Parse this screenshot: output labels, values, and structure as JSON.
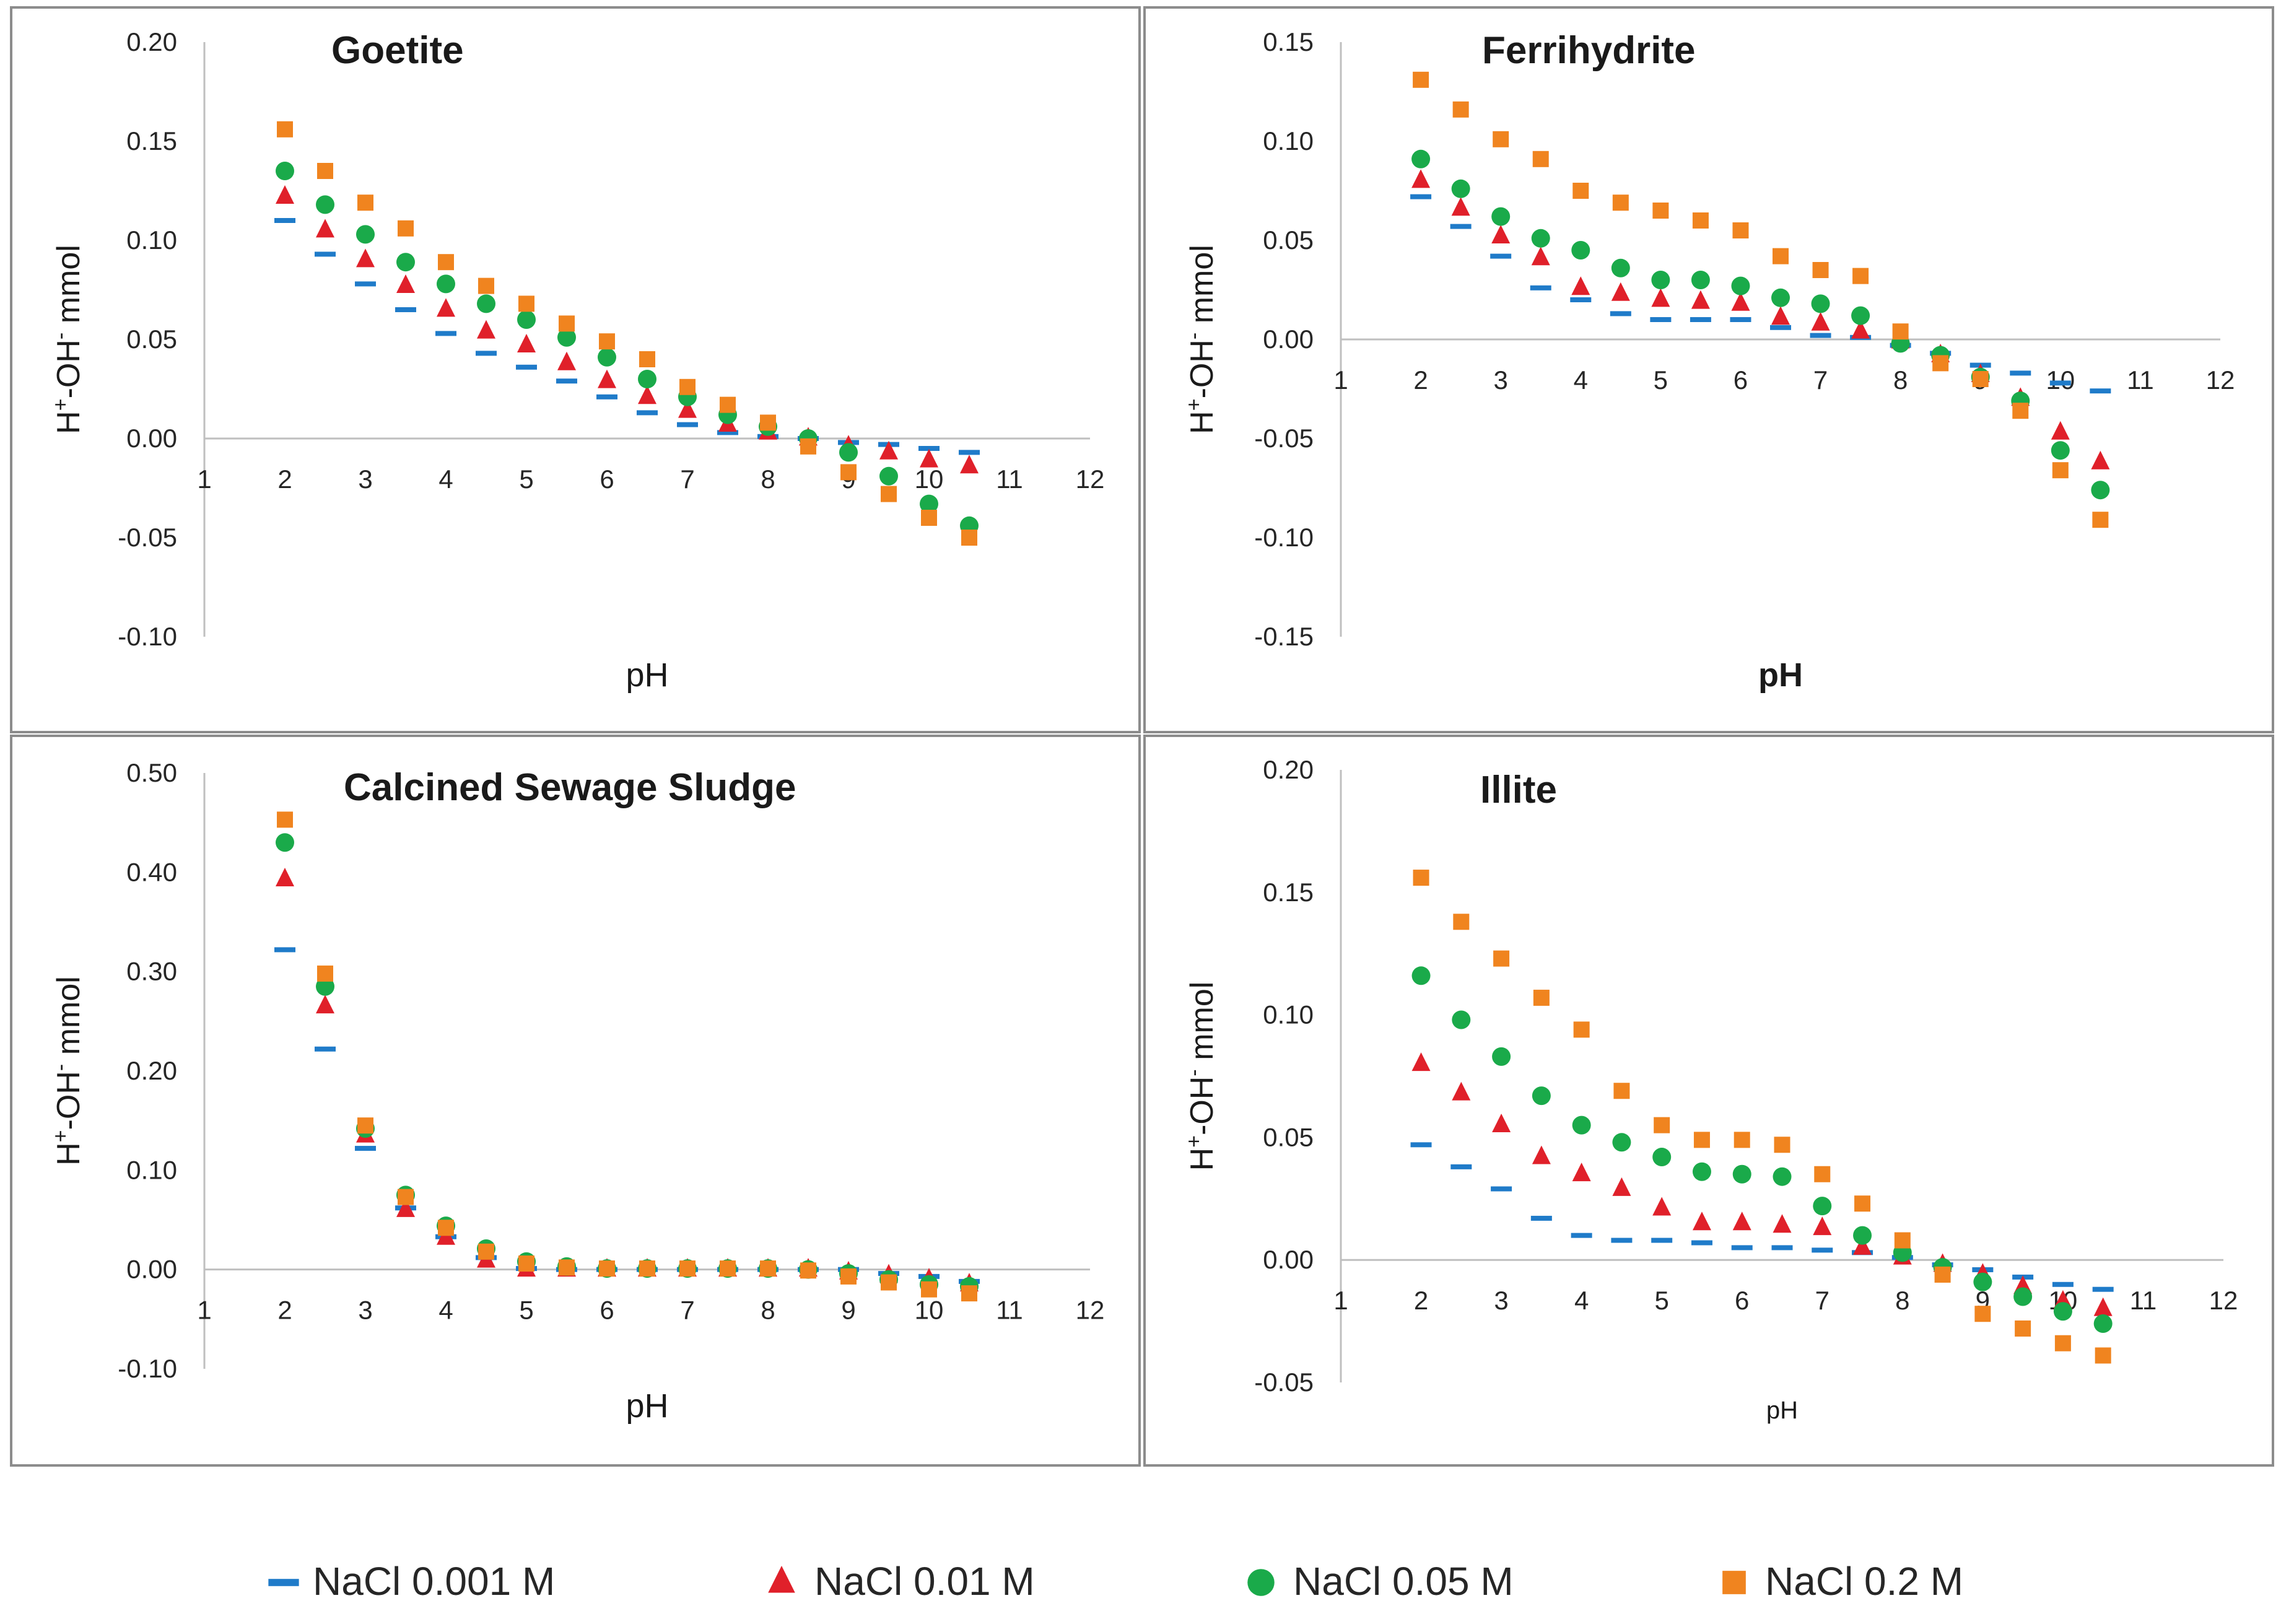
{
  "chart_data": [
    {
      "type": "scatter",
      "title": "Goetite",
      "xlabel": "pH",
      "xlabel_bold": false,
      "ylabel": "H+-OH- mmol",
      "xlim": [
        1,
        12
      ],
      "ylim": [
        -0.1,
        0.2
      ],
      "x_ticks": [
        1,
        2,
        3,
        4,
        5,
        6,
        7,
        8,
        9,
        10,
        11,
        12
      ],
      "y_ticks": [
        "0.20",
        "0.15",
        "0.10",
        "0.05",
        "0.00",
        "-0.05",
        "-0.10"
      ],
      "x": [
        2,
        2.5,
        3,
        3.5,
        4,
        4.5,
        5,
        5.5,
        6,
        6.5,
        7,
        7.5,
        8,
        8.5,
        9,
        9.5,
        10,
        10.5
      ],
      "series": [
        {
          "name": "NaCl 0.001 M",
          "values": [
            0.11,
            0.093,
            0.078,
            0.065,
            0.053,
            0.043,
            0.036,
            0.029,
            0.021,
            0.013,
            0.007,
            0.003,
            0.001,
            0.0,
            -0.002,
            -0.003,
            -0.005,
            -0.007
          ]
        },
        {
          "name": "NaCl 0.01 M",
          "values": [
            0.122,
            0.105,
            0.09,
            0.077,
            0.065,
            0.054,
            0.047,
            0.038,
            0.029,
            0.021,
            0.014,
            0.007,
            0.003,
            0.0,
            -0.004,
            -0.007,
            -0.011,
            -0.014
          ]
        },
        {
          "name": "NaCl 0.05 M",
          "values": [
            0.135,
            0.118,
            0.103,
            0.089,
            0.078,
            0.068,
            0.06,
            0.051,
            0.041,
            0.03,
            0.021,
            0.012,
            0.006,
            0.0,
            -0.007,
            -0.019,
            -0.033,
            -0.044
          ]
        },
        {
          "name": "NaCl 0.2 M",
          "values": [
            0.156,
            0.135,
            0.119,
            0.106,
            0.089,
            0.077,
            0.068,
            0.058,
            0.049,
            0.04,
            0.026,
            0.017,
            0.008,
            -0.004,
            -0.017,
            -0.028,
            -0.04,
            -0.05
          ]
        }
      ]
    },
    {
      "type": "scatter",
      "title": "Ferrihydrite",
      "xlabel": "pH",
      "xlabel_bold": true,
      "ylabel": "H+-OH- mmol",
      "xlim": [
        1,
        12
      ],
      "ylim": [
        -0.15,
        0.15
      ],
      "x_ticks": [
        1,
        2,
        3,
        4,
        5,
        6,
        7,
        8,
        9,
        10,
        11,
        12
      ],
      "y_ticks": [
        "0.15",
        "0.10",
        "0.05",
        "0.00",
        "-0.05",
        "-0.10",
        "-0.15"
      ],
      "x": [
        2,
        2.5,
        3,
        3.5,
        4,
        4.5,
        5,
        5.5,
        6,
        6.5,
        7,
        7.5,
        8,
        8.5,
        9,
        9.5,
        10,
        10.5
      ],
      "series": [
        {
          "name": "NaCl 0.001 M",
          "values": [
            0.072,
            0.057,
            0.042,
            0.026,
            0.02,
            0.013,
            0.01,
            0.01,
            0.01,
            0.006,
            0.002,
            0.001,
            -0.003,
            -0.007,
            -0.013,
            -0.017,
            -0.022,
            -0.026
          ]
        },
        {
          "name": "NaCl 0.01 M",
          "values": [
            0.08,
            0.066,
            0.052,
            0.041,
            0.026,
            0.023,
            0.02,
            0.019,
            0.018,
            0.011,
            0.008,
            0.004,
            -0.001,
            -0.008,
            -0.018,
            -0.03,
            -0.047,
            -0.062
          ]
        },
        {
          "name": "NaCl 0.05 M",
          "values": [
            0.091,
            0.076,
            0.062,
            0.051,
            0.045,
            0.036,
            0.03,
            0.03,
            0.027,
            0.021,
            0.018,
            0.012,
            -0.002,
            -0.008,
            -0.019,
            -0.031,
            -0.056,
            -0.076
          ]
        },
        {
          "name": "NaCl 0.2 M",
          "values": [
            0.131,
            0.116,
            0.101,
            0.091,
            0.075,
            0.069,
            0.065,
            0.06,
            0.055,
            0.042,
            0.035,
            0.032,
            0.004,
            -0.012,
            -0.02,
            -0.036,
            -0.066,
            -0.091
          ]
        }
      ]
    },
    {
      "type": "scatter",
      "title": "Calcined  Sewage Sludge",
      "xlabel": "pH",
      "xlabel_bold": false,
      "ylabel": "H+-OH- mmol",
      "xlim": [
        1,
        12
      ],
      "ylim": [
        -0.1,
        0.5
      ],
      "x_ticks": [
        1,
        2,
        3,
        4,
        5,
        6,
        7,
        8,
        9,
        10,
        11,
        12
      ],
      "y_ticks": [
        "0.50",
        "0.40",
        "0.30",
        "0.20",
        "0.10",
        "0.00",
        "-0.10"
      ],
      "x": [
        2,
        2.5,
        3,
        3.5,
        4,
        4.5,
        5,
        5.5,
        6,
        6.5,
        7,
        7.5,
        8,
        8.5,
        9,
        9.5,
        10,
        10.5
      ],
      "series": [
        {
          "name": "NaCl 0.001 M",
          "values": [
            0.322,
            0.222,
            0.122,
            0.062,
            0.033,
            0.012,
            0.001,
            0.0,
            0.0,
            0.0,
            0.0,
            0.0,
            0.0,
            0.0,
            0.0,
            -0.004,
            -0.007,
            -0.012
          ]
        },
        {
          "name": "NaCl 0.01 M",
          "values": [
            0.393,
            0.265,
            0.135,
            0.06,
            0.032,
            0.009,
            0.0,
            0.0,
            0.0,
            0.0,
            0.0,
            0.0,
            0.0,
            0.0,
            -0.003,
            -0.006,
            -0.01,
            -0.015
          ]
        },
        {
          "name": "NaCl 0.05 M",
          "values": [
            0.43,
            0.285,
            0.142,
            0.075,
            0.044,
            0.021,
            0.008,
            0.003,
            0.001,
            0.001,
            0.001,
            0.001,
            0.001,
            0.0,
            -0.004,
            -0.01,
            -0.015,
            -0.017
          ]
        },
        {
          "name": "NaCl 0.2 M",
          "values": [
            0.453,
            0.298,
            0.145,
            0.073,
            0.042,
            0.018,
            0.006,
            0.002,
            0.001,
            0.001,
            0.001,
            0.001,
            0.001,
            -0.001,
            -0.007,
            -0.013,
            -0.02,
            -0.024
          ]
        }
      ]
    },
    {
      "type": "scatter",
      "title": "Illite",
      "xlabel": "pH",
      "xlabel_bold": false,
      "xlabel_small": true,
      "ylabel": "H+-OH- mmol",
      "xlim": [
        1,
        12
      ],
      "ylim": [
        -0.05,
        0.2
      ],
      "x_ticks": [
        1,
        2,
        3,
        4,
        5,
        6,
        7,
        8,
        9,
        10,
        11,
        12
      ],
      "y_ticks": [
        "0.20",
        "0.15",
        "0.10",
        "0.05",
        "0.00",
        "-0.05"
      ],
      "x": [
        2,
        2.5,
        3,
        3.5,
        4,
        4.5,
        5,
        5.5,
        6,
        6.5,
        7,
        7.5,
        8,
        8.5,
        9,
        9.5,
        10,
        10.5
      ],
      "series": [
        {
          "name": "NaCl 0.001 M",
          "values": [
            0.047,
            0.038,
            0.029,
            0.017,
            0.01,
            0.008,
            0.008,
            0.007,
            0.005,
            0.005,
            0.004,
            0.003,
            0.001,
            -0.002,
            -0.004,
            -0.007,
            -0.01,
            -0.012
          ]
        },
        {
          "name": "NaCl 0.01 M",
          "values": [
            0.08,
            0.068,
            0.055,
            0.042,
            0.035,
            0.029,
            0.021,
            0.015,
            0.015,
            0.014,
            0.013,
            0.005,
            0.001,
            -0.002,
            -0.006,
            -0.011,
            -0.017,
            -0.02
          ]
        },
        {
          "name": "NaCl 0.05 M",
          "values": [
            0.116,
            0.098,
            0.083,
            0.067,
            0.055,
            0.048,
            0.042,
            0.036,
            0.035,
            0.034,
            0.022,
            0.01,
            0.003,
            -0.003,
            -0.009,
            -0.015,
            -0.021,
            -0.026
          ]
        },
        {
          "name": "NaCl 0.2 M",
          "values": [
            0.156,
            0.138,
            0.123,
            0.107,
            0.094,
            0.069,
            0.055,
            0.049,
            0.049,
            0.047,
            0.035,
            0.023,
            0.008,
            -0.006,
            -0.022,
            -0.028,
            -0.034,
            -0.039
          ]
        }
      ]
    }
  ],
  "legend": {
    "placement": "bottom",
    "entries": [
      {
        "label": "NaCl 0.001 M",
        "marker": "dash",
        "color": "#1f7bc9"
      },
      {
        "label": "NaCl 0.01 M",
        "marker": "triangle",
        "color": "#e0202a"
      },
      {
        "label": "NaCl 0.05 M",
        "marker": "circle",
        "color": "#1aaa4a"
      },
      {
        "label": "NaCl 0.2 M",
        "marker": "square",
        "color": "#f0841f"
      }
    ]
  }
}
